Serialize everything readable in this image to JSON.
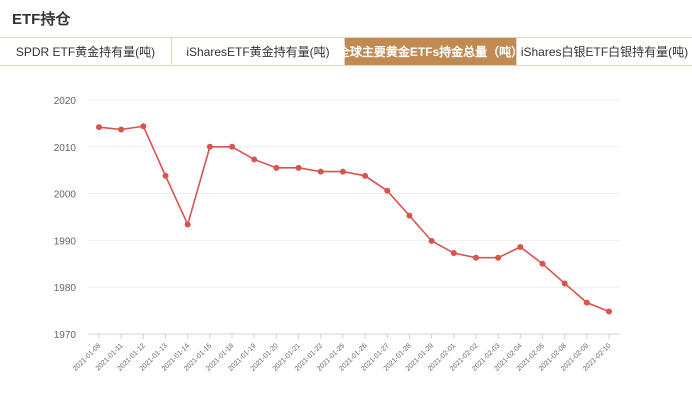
{
  "header": {
    "title": "ETF持仓"
  },
  "tabs": [
    {
      "label": "SPDR ETF黄金持有量(吨)",
      "active": false
    },
    {
      "label": "iSharesETF黄金持有量(吨)",
      "active": false
    },
    {
      "label": "全球主要黄金ETFs持金总量（吨）",
      "active": true
    },
    {
      "label": "iShares白银ETF白银持有量(吨)",
      "active": false
    }
  ],
  "colors": {
    "accent": "#c28a50",
    "line": "#d9534f",
    "grid": "#eeeeee",
    "axis": "#c9d3e6"
  },
  "chart_data": {
    "type": "line",
    "title": "",
    "xlabel": "",
    "ylabel": "",
    "ylim": [
      1970,
      2020
    ],
    "yticks": [
      1970,
      1980,
      1990,
      2000,
      2010,
      2020
    ],
    "grid": true,
    "categories": [
      "2021-01-08",
      "2021-01-11",
      "2021-01-12",
      "2021-01-13",
      "2021-01-14",
      "2021-01-15",
      "2021-01-18",
      "2021-01-19",
      "2021-01-20",
      "2021-01-21",
      "2021-01-22",
      "2021-01-25",
      "2021-01-26",
      "2021-01-27",
      "2021-01-28",
      "2021-01-29",
      "2021-02-01",
      "2021-02-02",
      "2021-02-03",
      "2021-02-04",
      "2021-02-05",
      "2021-02-08",
      "2021-02-09",
      "2021-02-10"
    ],
    "series": [
      {
        "values": [
          2014.2,
          2013.7,
          2014.4,
          2003.8,
          1993.4,
          2010.0,
          2010.0,
          2007.3,
          2005.5,
          2005.5,
          2004.7,
          2004.7,
          2003.8,
          2000.6,
          1995.3,
          1989.9,
          1987.3,
          1986.3,
          1986.3,
          1988.6,
          1985.0,
          1980.8,
          1976.7,
          1974.8
        ]
      }
    ]
  }
}
